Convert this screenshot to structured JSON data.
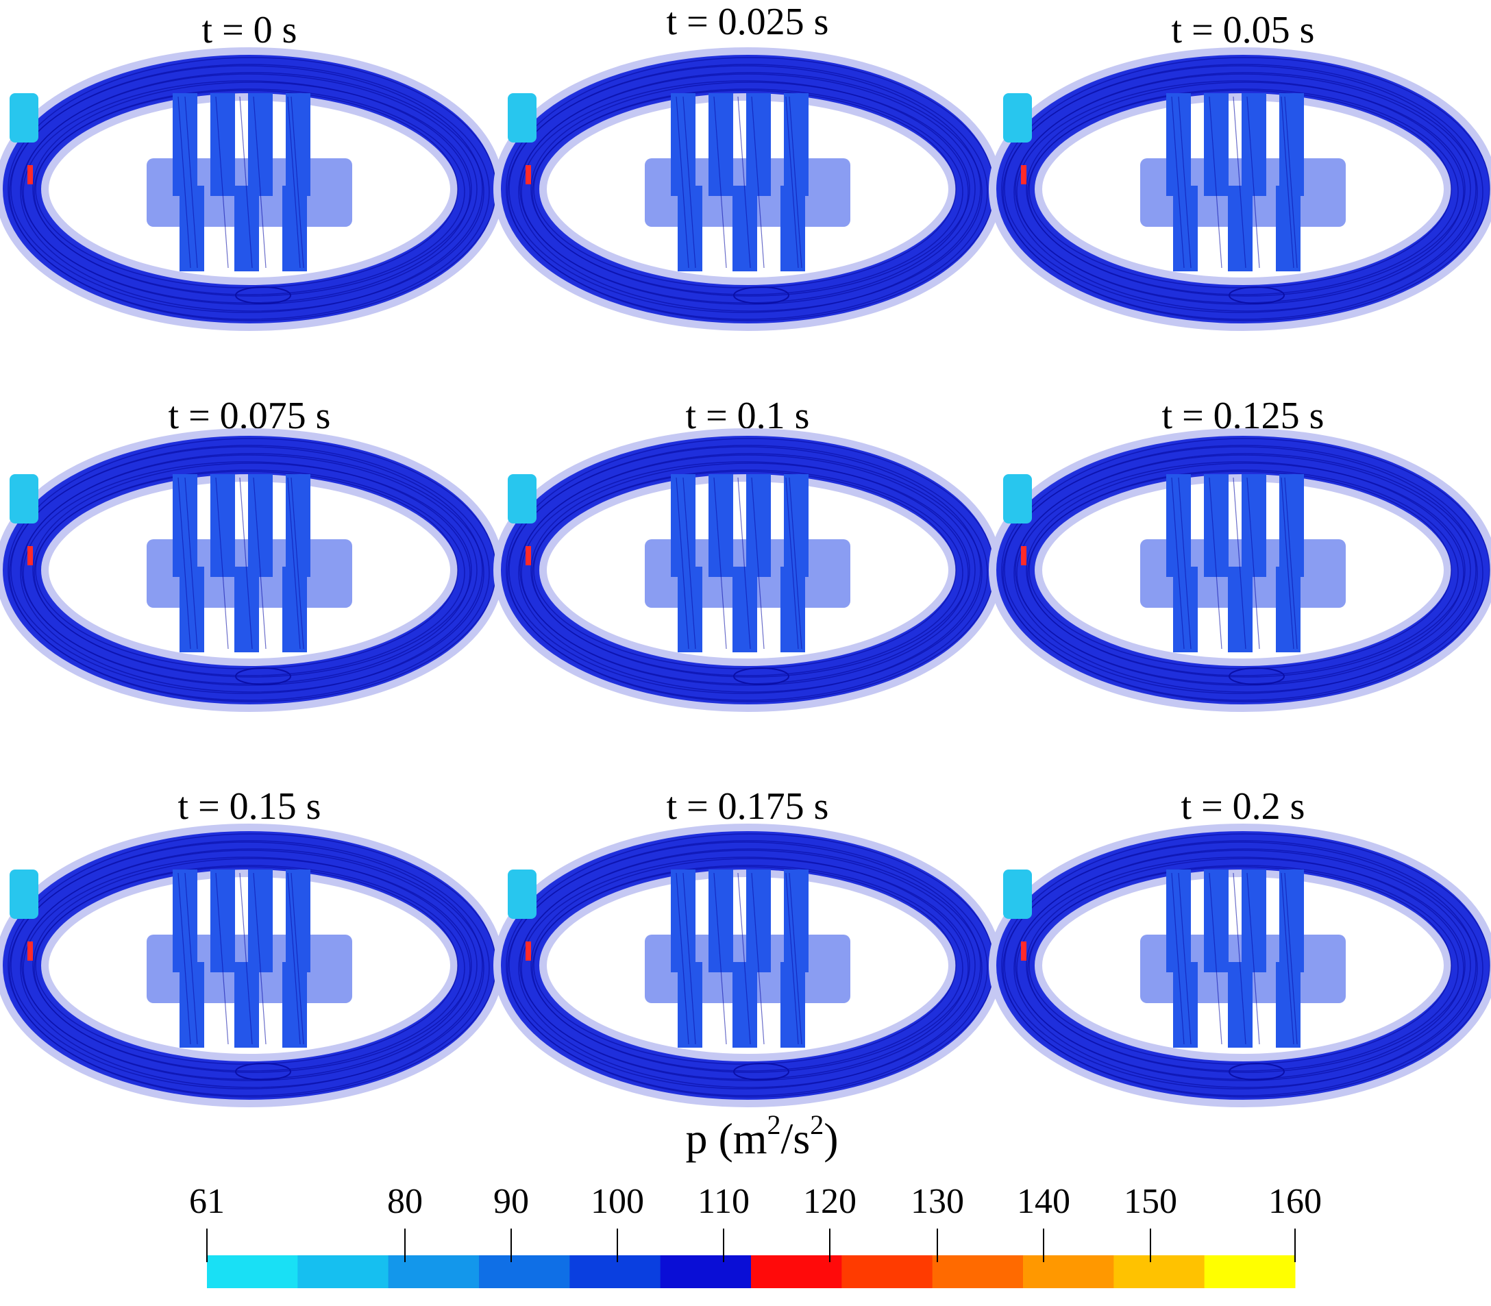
{
  "panels": [
    {
      "title": "t = 0 s"
    },
    {
      "title": "t = 0.025 s"
    },
    {
      "title": "t = 0.05 s"
    },
    {
      "title": "t = 0.075 s"
    },
    {
      "title": "t = 0.1 s"
    },
    {
      "title": "t = 0.125 s"
    },
    {
      "title": "t = 0.15 s"
    },
    {
      "title": "t = 0.175 s"
    },
    {
      "title": "t = 0.2 s"
    }
  ],
  "colorbar": {
    "label": {
      "base": "p (m",
      "sup1": "2",
      "mid": "/s",
      "sup2": "2",
      "end": ")"
    },
    "ticks": [
      61,
      80,
      90,
      100,
      110,
      120,
      130,
      140,
      150,
      160
    ]
  }
}
